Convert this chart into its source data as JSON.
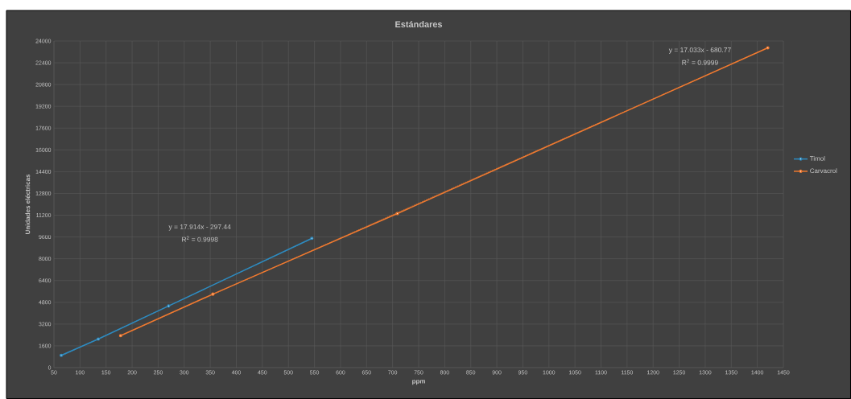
{
  "chart_data": {
    "type": "line",
    "title": "Estándares",
    "xlabel": "ppm",
    "ylabel": "Unidades eléctricas",
    "series": [
      {
        "name": "Timol",
        "color": "#2e8bc0",
        "x": [
          64,
          135,
          270,
          545
        ],
        "values": [
          900,
          2100,
          4530,
          9500
        ]
      },
      {
        "name": "Carvacrol",
        "color": "#f07a30",
        "x": [
          178,
          355,
          709,
          1420
        ],
        "values": [
          2350,
          5400,
          11320,
          23500
        ]
      },
      {
        "type": "line",
        "line_style": "dotted",
        "marker": "none",
        "color": "#2e8bc0",
        "x": [
          64,
          545
        ],
        "values": [
          850,
          9460
        ]
      },
      {
        "type": "line",
        "line_style": "dotted",
        "marker": "none",
        "color": "#f07a30",
        "x": [
          178,
          1420
        ],
        "values": [
          2350,
          23500
        ]
      }
    ],
    "annotations": [
      "y = 17.914x - 297.44",
      "R$^{2}$ = 0.9998",
      "y = 17.033x - 680.77",
      "R$^{2}$ = 0.9999"
    ],
    "xlim": [
      50,
      1450
    ],
    "ylim": [
      0,
      24000
    ],
    "xticks": [
      50,
      100,
      150,
      200,
      250,
      300,
      350,
      400,
      450,
      500,
      550,
      600,
      650,
      700,
      750,
      800,
      850,
      900,
      950,
      1000,
      1050,
      1100,
      1150,
      1200,
      1250,
      1300,
      1350,
      1400,
      1450
    ],
    "yticks": [
      0,
      1600,
      3200,
      4800,
      6400,
      8000,
      9600,
      11200,
      12800,
      14400,
      16000,
      17600,
      19200,
      20800,
      22400,
      24000
    ],
    "grid": true,
    "legend": "right",
    "marker": "circle",
    "line_style": "solid"
  }
}
